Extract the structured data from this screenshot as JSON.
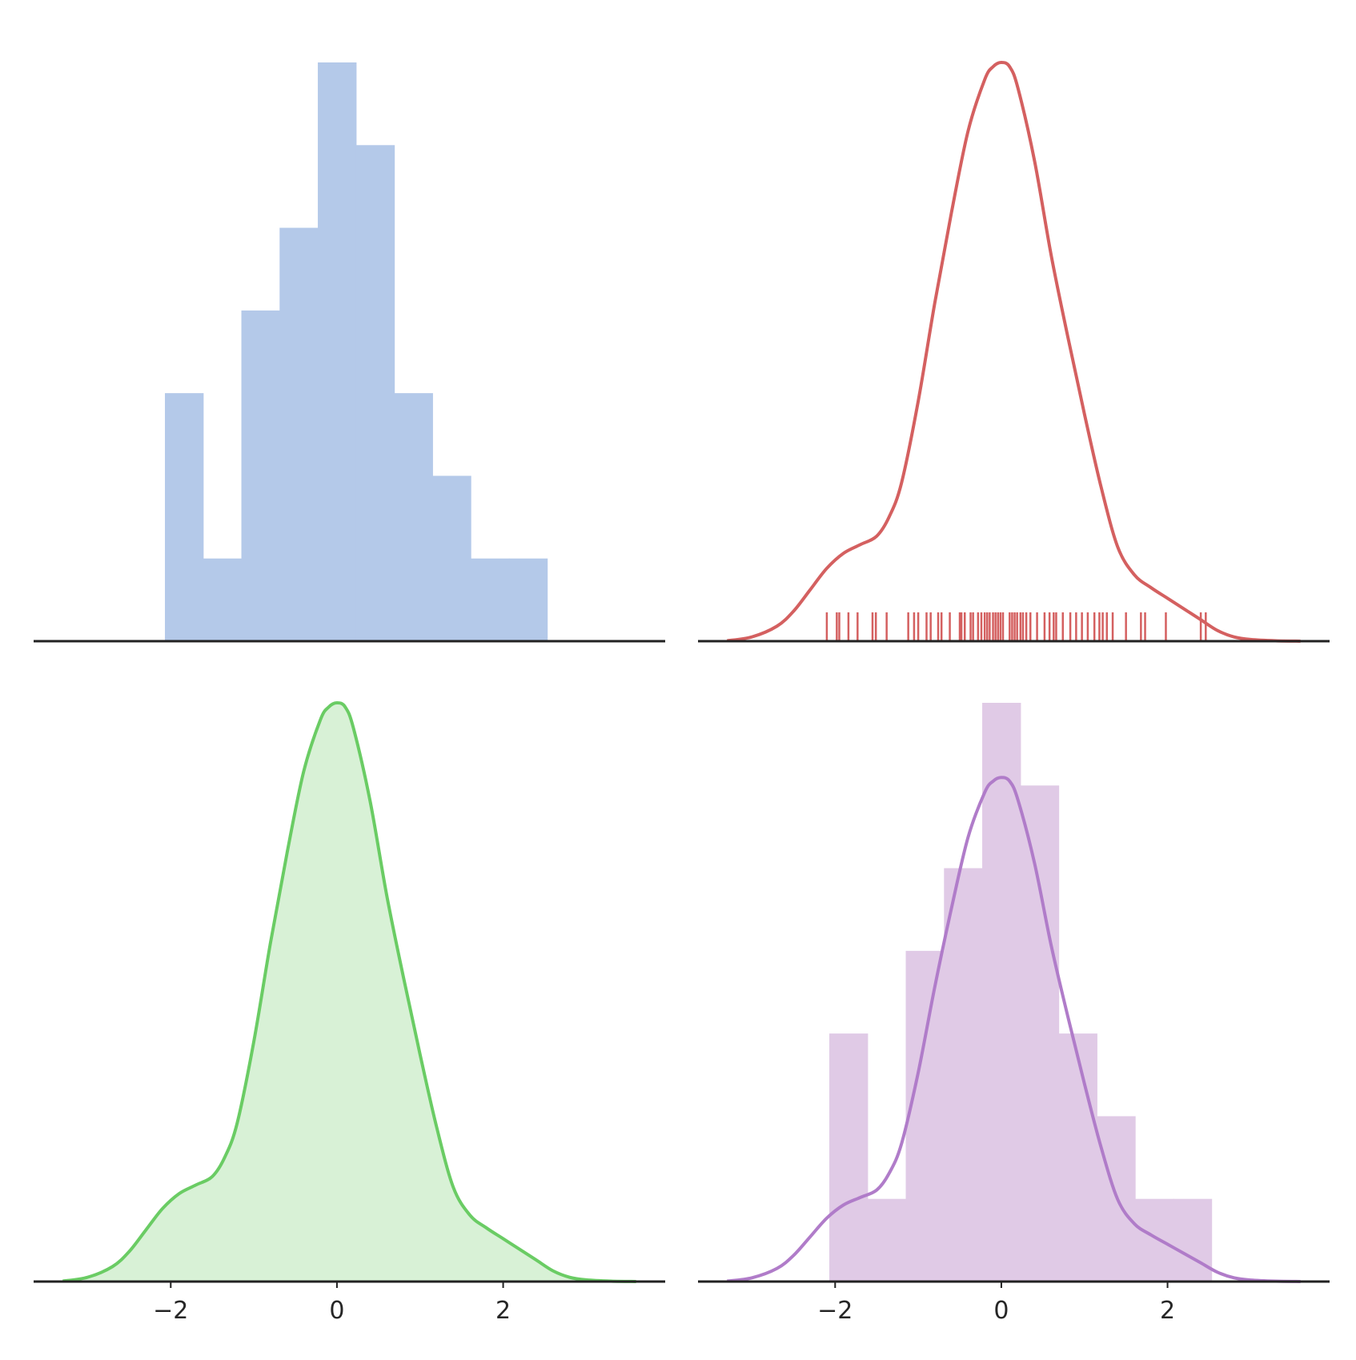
{
  "chart_data": [
    {
      "type": "histogram",
      "panel": "top-left",
      "color": "#b4c9e9",
      "bin_edges": [
        -2.07,
        -1.61,
        -1.15,
        -0.69,
        -0.23,
        0.23,
        0.69,
        1.15,
        1.61,
        2.07,
        2.53
      ],
      "counts": [
        3,
        1,
        4,
        5,
        7,
        6,
        3,
        2,
        1,
        1
      ],
      "xlim": [
        -3.65,
        3.95
      ],
      "ylim": [
        0,
        7
      ],
      "xticks": [],
      "grid": false
    },
    {
      "type": "line",
      "panel": "top-right",
      "subtype": "kde-with-rug",
      "color": "#d46060",
      "kde": {
        "x": [
          -3.3,
          -3.0,
          -2.7,
          -2.5,
          -2.3,
          -2.1,
          -1.9,
          -1.7,
          -1.5,
          -1.35,
          -1.2,
          -1.0,
          -0.8,
          -0.6,
          -0.4,
          -0.2,
          -0.1,
          0.0,
          0.1,
          0.2,
          0.4,
          0.6,
          0.8,
          1.0,
          1.2,
          1.4,
          1.6,
          1.8,
          2.0,
          2.2,
          2.4,
          2.6,
          2.8,
          3.0,
          3.3,
          3.6
        ],
        "density": [
          0.001,
          0.01,
          0.035,
          0.07,
          0.12,
          0.17,
          0.205,
          0.225,
          0.245,
          0.29,
          0.37,
          0.56,
          0.79,
          1.0,
          1.19,
          1.31,
          1.34,
          1.35,
          1.34,
          1.29,
          1.12,
          0.9,
          0.71,
          0.53,
          0.36,
          0.22,
          0.155,
          0.125,
          0.1,
          0.075,
          0.05,
          0.025,
          0.01,
          0.004,
          0.001,
          0.0
        ]
      },
      "rug": [
        -2.1,
        -1.98,
        -1.95,
        -1.84,
        -1.73,
        -1.55,
        -1.51,
        -1.38,
        -1.12,
        -1.05,
        -1.0,
        -0.9,
        -0.85,
        -0.76,
        -0.72,
        -0.62,
        -0.5,
        -0.48,
        -0.44,
        -0.37,
        -0.34,
        -0.28,
        -0.24,
        -0.2,
        -0.17,
        -0.14,
        -0.1,
        -0.07,
        -0.04,
        -0.01,
        0.02,
        0.1,
        0.13,
        0.16,
        0.19,
        0.23,
        0.26,
        0.3,
        0.35,
        0.43,
        0.52,
        0.58,
        0.63,
        0.66,
        0.74,
        0.83,
        0.9,
        0.97,
        1.04,
        1.12,
        1.18,
        1.22,
        1.27,
        1.34,
        1.5,
        1.68,
        1.73,
        1.98,
        2.4,
        2.46
      ],
      "xlim": [
        -3.65,
        3.95
      ],
      "ylim": [
        0,
        1.35
      ],
      "xticks": [],
      "grid": false
    },
    {
      "type": "area",
      "panel": "bottom-left",
      "subtype": "shaded-kde",
      "color": "#6acc64",
      "fill_color": "#d8f1d6",
      "kde": {
        "x": [
          -3.3,
          -3.0,
          -2.7,
          -2.5,
          -2.3,
          -2.1,
          -1.9,
          -1.7,
          -1.5,
          -1.35,
          -1.2,
          -1.0,
          -0.8,
          -0.6,
          -0.4,
          -0.2,
          -0.1,
          0.0,
          0.1,
          0.2,
          0.4,
          0.6,
          0.8,
          1.0,
          1.2,
          1.4,
          1.6,
          1.8,
          2.0,
          2.2,
          2.4,
          2.6,
          2.8,
          3.0,
          3.3,
          3.6
        ],
        "density": [
          0.001,
          0.01,
          0.035,
          0.07,
          0.12,
          0.17,
          0.205,
          0.225,
          0.245,
          0.29,
          0.37,
          0.56,
          0.79,
          1.0,
          1.19,
          1.31,
          1.34,
          1.35,
          1.34,
          1.29,
          1.12,
          0.9,
          0.71,
          0.53,
          0.36,
          0.22,
          0.155,
          0.125,
          0.1,
          0.075,
          0.05,
          0.025,
          0.01,
          0.004,
          0.001,
          0.0
        ]
      },
      "xlim": [
        -3.65,
        3.95
      ],
      "ylim": [
        0,
        1.35
      ],
      "xticks": [
        -2,
        0,
        2
      ],
      "xtick_labels": [
        "−2",
        "0",
        "2"
      ],
      "grid": false
    },
    {
      "type": "histogram",
      "panel": "bottom-right",
      "subtype": "histogram-with-kde",
      "bar_color": "#e0cae6",
      "line_color": "#b07cc9",
      "bin_edges": [
        -2.07,
        -1.61,
        -1.15,
        -0.69,
        -0.23,
        0.23,
        0.69,
        1.15,
        1.61,
        2.07,
        2.53
      ],
      "counts": [
        3,
        1,
        4,
        5,
        7,
        6,
        3,
        2,
        1,
        1
      ],
      "kde": {
        "x": [
          -3.3,
          -3.0,
          -2.7,
          -2.5,
          -2.3,
          -2.1,
          -1.9,
          -1.7,
          -1.5,
          -1.35,
          -1.2,
          -1.0,
          -0.8,
          -0.6,
          -0.4,
          -0.2,
          -0.1,
          0.0,
          0.1,
          0.2,
          0.4,
          0.6,
          0.8,
          1.0,
          1.2,
          1.4,
          1.6,
          1.8,
          2.0,
          2.2,
          2.4,
          2.6,
          2.8,
          3.0,
          3.3,
          3.6
        ],
        "density": [
          0.001,
          0.01,
          0.035,
          0.07,
          0.12,
          0.17,
          0.205,
          0.225,
          0.245,
          0.29,
          0.37,
          0.56,
          0.79,
          1.0,
          1.19,
          1.31,
          1.34,
          1.35,
          1.34,
          1.29,
          1.12,
          0.9,
          0.71,
          0.53,
          0.36,
          0.22,
          0.155,
          0.125,
          0.1,
          0.075,
          0.05,
          0.025,
          0.01,
          0.004,
          0.001,
          0.0
        ]
      },
      "xlim": [
        -3.65,
        3.95
      ],
      "ylim": [
        0,
        7
      ],
      "xticks": [
        -2,
        0,
        2
      ],
      "xtick_labels": [
        "−2",
        "0",
        "2"
      ],
      "grid": false
    }
  ]
}
